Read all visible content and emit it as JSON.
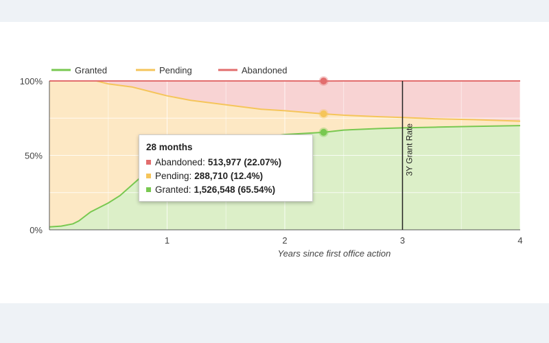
{
  "chart_data": {
    "type": "area",
    "stacked": true,
    "xlabel": "Years since first office action",
    "ylabel": "",
    "xlim": [
      0,
      4
    ],
    "ylim": [
      0,
      100
    ],
    "x_ticks": [
      "1",
      "2",
      "3",
      "4"
    ],
    "y_ticks": [
      "0%",
      "50%",
      "100%"
    ],
    "legend_position": "top-left",
    "series": [
      {
        "name": "Granted",
        "color": "#78c850",
        "fill": "#dcefc8",
        "x": [
          0,
          0.1,
          0.2,
          0.25,
          0.3,
          0.35,
          0.4,
          0.5,
          0.6,
          0.7,
          0.8,
          0.9,
          1.0,
          1.2,
          1.5,
          1.8,
          2.0,
          2.33,
          2.5,
          2.8,
          3.0,
          3.3,
          3.6,
          4.0
        ],
        "y": [
          2,
          2.5,
          4,
          6,
          9,
          12,
          14,
          18,
          23,
          30,
          37,
          44,
          50,
          55,
          59,
          62,
          64,
          65.5,
          67,
          68,
          68.5,
          69,
          69.5,
          70
        ]
      },
      {
        "name": "Pending",
        "color": "#f5c55a",
        "fill": "#fde8c4",
        "x": [
          0,
          0.1,
          0.2,
          0.25,
          0.3,
          0.35,
          0.4,
          0.5,
          0.6,
          0.7,
          0.8,
          0.9,
          1.0,
          1.2,
          1.5,
          1.8,
          2.0,
          2.33,
          2.5,
          2.8,
          3.0,
          3.3,
          3.6,
          4.0
        ],
        "y": [
          98,
          97.5,
          96,
          94,
          91,
          88,
          86,
          80,
          74,
          66,
          57,
          48,
          40,
          32,
          25,
          19,
          16,
          12.4,
          10,
          8,
          7,
          5.5,
          4.5,
          3
        ]
      },
      {
        "name": "Abandoned",
        "color": "#e26d6d",
        "fill": "#f8d3d3",
        "x": [
          0,
          0.1,
          0.2,
          0.25,
          0.3,
          0.35,
          0.4,
          0.5,
          0.6,
          0.7,
          0.8,
          0.9,
          1.0,
          1.2,
          1.5,
          1.8,
          2.0,
          2.33,
          2.5,
          2.8,
          3.0,
          3.3,
          3.6,
          4.0
        ],
        "y": [
          0,
          0,
          0,
          0,
          0,
          0,
          0,
          2,
          3,
          4,
          6,
          8,
          10,
          13,
          16,
          19,
          20,
          22.07,
          23,
          24,
          24.5,
          25.5,
          26,
          27
        ]
      }
    ],
    "annotation": {
      "x": 3,
      "label": "3Y Grant Rate"
    },
    "tooltip": {
      "x": 2.33,
      "title": "28 months",
      "rows": [
        {
          "series": "Abandoned",
          "label": "Abandoned:",
          "value": "513,977 (22.07%)",
          "color": "#e26d6d"
        },
        {
          "series": "Pending",
          "label": "Pending:",
          "value": "288,710 (12.4%)",
          "color": "#f5c55a"
        },
        {
          "series": "Granted",
          "label": "Granted:",
          "value": "1,526,548 (65.54%)",
          "color": "#78c850"
        }
      ]
    }
  }
}
